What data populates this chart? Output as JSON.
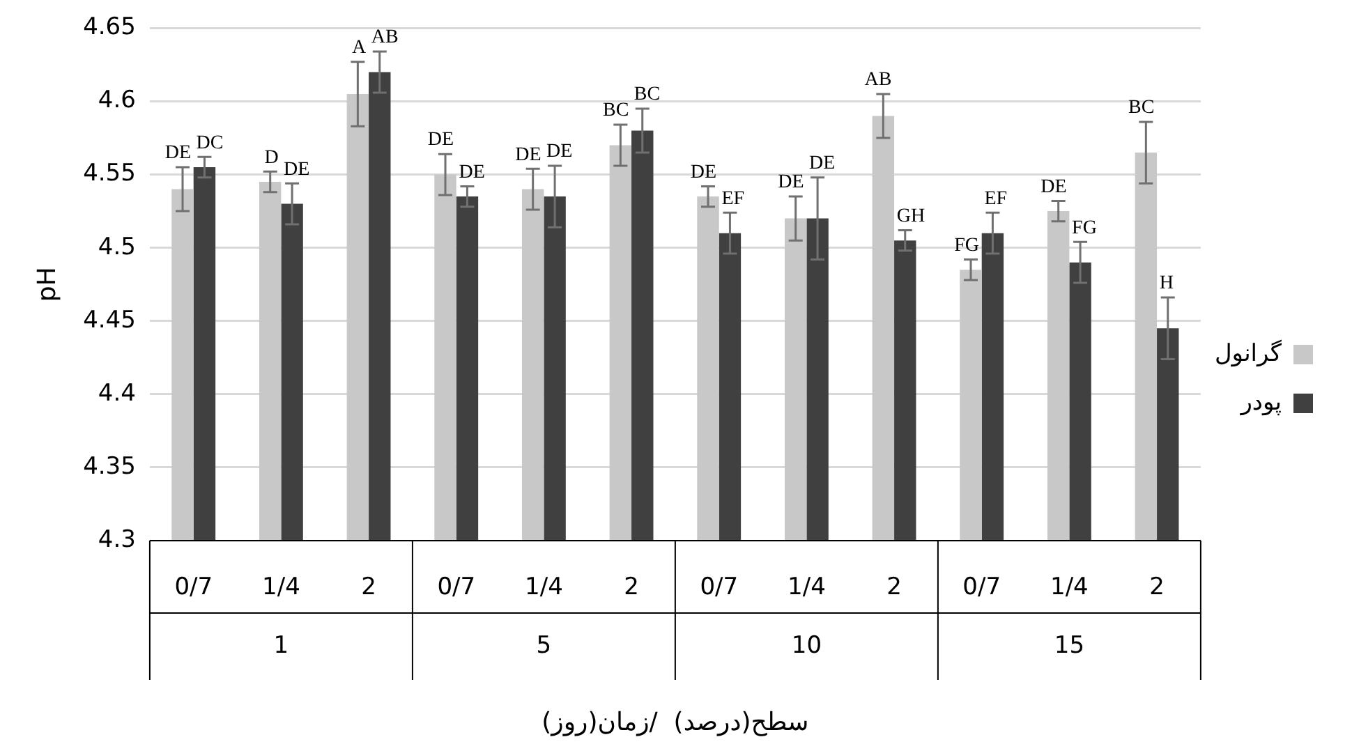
{
  "chart_data": {
    "type": "bar",
    "ylabel": "pH",
    "xlabel": "سطح(درصد)  /زمان(روز)",
    "categories": [
      "0/7",
      "1/4",
      "2",
      "0/7",
      "1/4",
      "2",
      "0/7",
      "1/4",
      "2",
      "0/7",
      "1/4",
      "2"
    ],
    "annotations": [
      "1",
      "5",
      "10",
      "15"
    ],
    "series": [
      {
        "name": "گرانول",
        "color": "#c8c8c8",
        "values": [
          4.54,
          4.545,
          4.605,
          4.55,
          4.54,
          4.57,
          4.535,
          4.52,
          4.59,
          4.485,
          4.525,
          4.565
        ],
        "errors": [
          0.015,
          0.007,
          0.022,
          0.014,
          0.014,
          0.014,
          0.007,
          0.015,
          0.015,
          0.007,
          0.007,
          0.021
        ],
        "value_labels": [
          "DE",
          "D",
          "A",
          "DE",
          "DE",
          "BC",
          "DE",
          "DE",
          "AB",
          "FG",
          "DE",
          "BC"
        ]
      },
      {
        "name": "پودر",
        "color": "#404040",
        "values": [
          4.555,
          4.53,
          4.62,
          4.535,
          4.535,
          4.58,
          4.51,
          4.52,
          4.505,
          4.51,
          4.49,
          4.445
        ],
        "errors": [
          0.007,
          0.014,
          0.014,
          0.007,
          0.021,
          0.015,
          0.014,
          0.028,
          0.007,
          0.014,
          0.014,
          0.021
        ],
        "value_labels": [
          "DC",
          "DE",
          "AB",
          "DE",
          "DE",
          "BC",
          "EF",
          "DE",
          "GH",
          "EF",
          "FG",
          "H"
        ]
      }
    ],
    "ylim": [
      4.3,
      4.65
    ],
    "yticks": [
      4.3,
      4.35,
      4.4,
      4.45,
      4.5,
      4.55,
      4.6,
      4.65
    ],
    "grid": "y",
    "legend": "right"
  }
}
